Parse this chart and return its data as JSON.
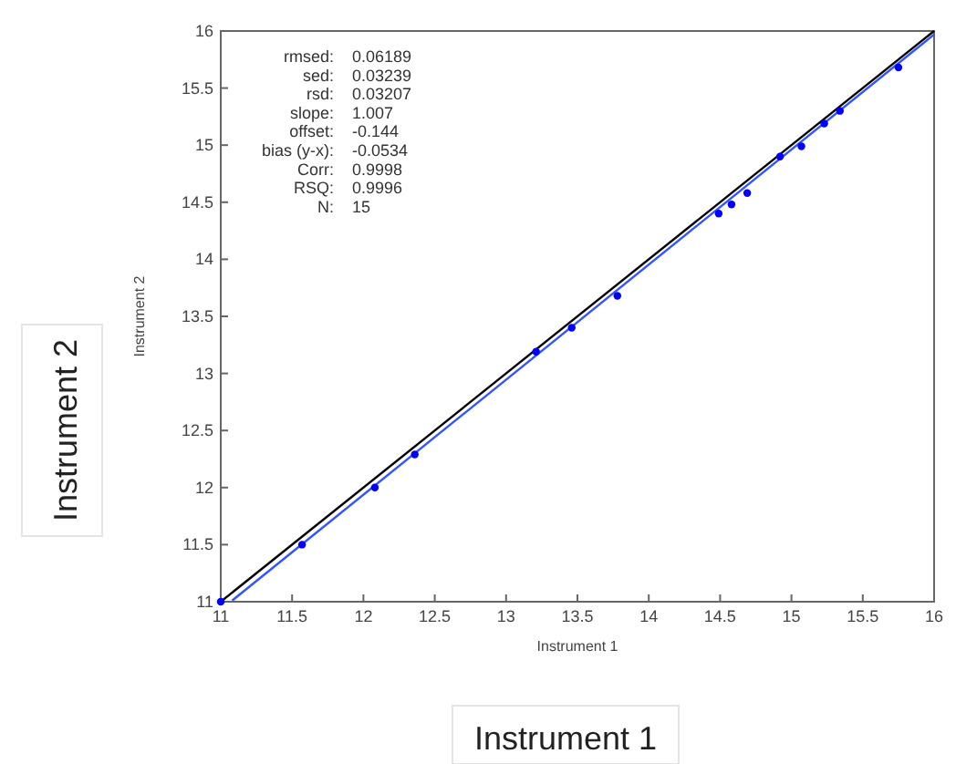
{
  "chart_data": {
    "type": "scatter",
    "xlabel": "Instrument 1",
    "ylabel": "Instrument 2",
    "xlim": [
      11,
      16
    ],
    "ylim": [
      11,
      16
    ],
    "xticks": [
      11,
      11.5,
      12,
      12.5,
      13,
      13.5,
      14,
      14.5,
      15,
      15.5,
      16
    ],
    "yticks": [
      11,
      11.5,
      12,
      12.5,
      13,
      13.5,
      14,
      14.5,
      15,
      15.5,
      16
    ],
    "grid": false,
    "series": [
      {
        "type": "line",
        "color": "#000000",
        "x": [
          11,
          16
        ],
        "values": [
          11,
          16
        ]
      },
      {
        "type": "line",
        "color": "#3355ff",
        "x": [
          11.08,
          16
        ],
        "values": [
          11.01,
          15.97
        ]
      },
      {
        "marker": "circle",
        "color": "#0000ff",
        "x": [
          11,
          11.57,
          12.08,
          12.36,
          13.21,
          13.46,
          13.78,
          14.49,
          14.58,
          14.69,
          14.92,
          15.07,
          15.23,
          15.34,
          15.75
        ],
        "values": [
          11,
          11.5,
          12.0,
          12.29,
          13.19,
          13.4,
          13.68,
          14.4,
          14.48,
          14.58,
          14.9,
          14.99,
          15.19,
          15.3,
          15.68
        ]
      }
    ],
    "annotations": [
      "rmsed: 0.06189",
      "sed: 0.03239",
      "rsd: 0.03207",
      "slope: 1.007",
      "offset: -0.144",
      "bias (y-x): -0.0534",
      "Corr: 0.9998",
      "RSQ: 0.9996",
      "N: 15",
      "Instrument 2",
      "Instrument 1"
    ]
  }
}
